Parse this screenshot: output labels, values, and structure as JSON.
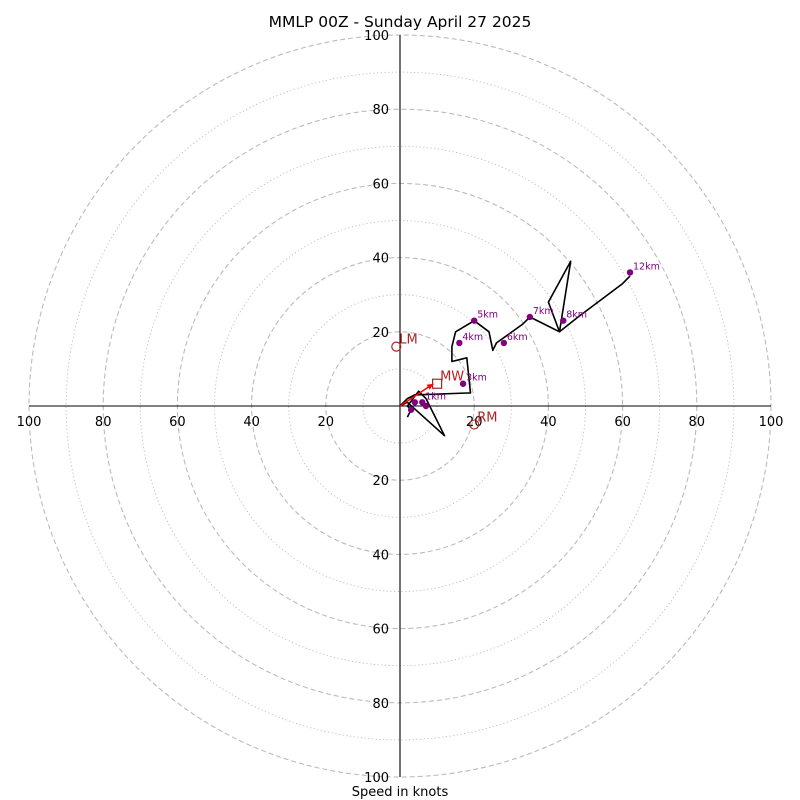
{
  "chart_data": {
    "type": "hodograph",
    "title": "MMLP 00Z - Sunday April 27 2025",
    "xlabel": "Speed in knots",
    "max_speed": 100,
    "ring_interval_dashed": 20,
    "ring_interval_dotted": 10,
    "grid": true,
    "tick_values": [
      20,
      40,
      60,
      80,
      100
    ],
    "tick_labels": {
      "right": [
        "20",
        "40",
        "60",
        "80",
        "100"
      ],
      "left": [
        "20",
        "40",
        "60",
        "80",
        "100"
      ],
      "top": [
        "20",
        "40",
        "60",
        "80",
        "100"
      ],
      "bottom": [
        "20",
        "40",
        "60",
        "80",
        "100"
      ]
    },
    "colors": {
      "trace": "#000000",
      "height_markers": "#800080",
      "motion": "#b22222",
      "shear_arrow": "#ff0000",
      "ring": "#bbbbbb"
    },
    "trace": [
      [
        2,
        -3
      ],
      [
        3,
        -1
      ],
      [
        2,
        0
      ],
      [
        5,
        4
      ],
      [
        7,
        2
      ],
      [
        10,
        -4
      ],
      [
        12,
        -8
      ],
      [
        2,
        1
      ],
      [
        0,
        0
      ],
      [
        2,
        2
      ],
      [
        4,
        3
      ],
      [
        18,
        3.5
      ],
      [
        19,
        3.5
      ],
      [
        18,
        13
      ],
      [
        14,
        12
      ],
      [
        14,
        16
      ],
      [
        15,
        20
      ],
      [
        20,
        23
      ],
      [
        24,
        20
      ],
      [
        25,
        15
      ],
      [
        26,
        17
      ],
      [
        33,
        22
      ],
      [
        35,
        24
      ],
      [
        39,
        22
      ],
      [
        43,
        20
      ],
      [
        40,
        28
      ],
      [
        46,
        39
      ],
      [
        43,
        20
      ],
      [
        48,
        24
      ],
      [
        60,
        33
      ],
      [
        62,
        35
      ]
    ],
    "height_markers": [
      {
        "label": "1km",
        "u": 6,
        "v": 1
      },
      {
        "label": "",
        "u": 7,
        "v": 0
      },
      {
        "label": "",
        "u": 4,
        "v": 1
      },
      {
        "label": "",
        "u": 3,
        "v": -1
      },
      {
        "label": "3km",
        "u": 17,
        "v": 6
      },
      {
        "label": "4km",
        "u": 16,
        "v": 17
      },
      {
        "label": "5km",
        "u": 20,
        "v": 23
      },
      {
        "label": "6km",
        "u": 28,
        "v": 17
      },
      {
        "label": "7km",
        "u": 35,
        "v": 24
      },
      {
        "label": "8km",
        "u": 44,
        "v": 23
      },
      {
        "label": "12km",
        "u": 62,
        "v": 36
      }
    ],
    "storm_motions": [
      {
        "label": "LM",
        "u": -1,
        "v": 16,
        "marker": "circle"
      },
      {
        "label": "RM",
        "u": 20,
        "v": -5,
        "marker": "circle"
      },
      {
        "label": "MW",
        "u": 10,
        "v": 6,
        "marker": "square"
      }
    ],
    "shear_arrow": {
      "from": [
        0,
        0
      ],
      "to": [
        9,
        6
      ]
    }
  }
}
